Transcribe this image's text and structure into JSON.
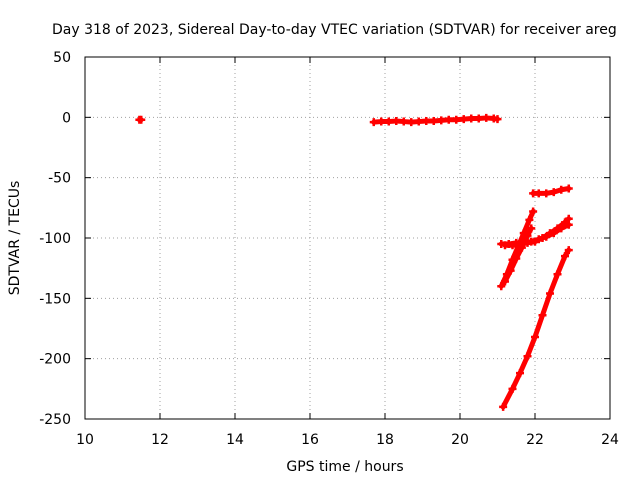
{
  "chart_data": {
    "type": "scatter",
    "title": "Day 318 of 2023, Sidereal Day-to-day VTEC variation (SDTVAR) for receiver areg",
    "xlabel": "GPS time / hours",
    "ylabel": "SDTVAR / TECUs",
    "xlim": [
      10,
      24
    ],
    "ylim": [
      -250,
      50
    ],
    "xticks": [
      10,
      12,
      14,
      16,
      18,
      20,
      22,
      24
    ],
    "yticks": [
      50,
      0,
      -50,
      -100,
      -150,
      -200,
      -250
    ],
    "grid": true,
    "marker_color": "#ff0000",
    "series": [
      {
        "points": [
          [
            11.45,
            -2
          ],
          [
            11.5,
            -2
          ]
        ]
      },
      {
        "points": [
          [
            17.7,
            -4
          ],
          [
            17.9,
            -3.5
          ],
          [
            18.1,
            -3.5
          ],
          [
            18.3,
            -3
          ],
          [
            18.5,
            -3.5
          ],
          [
            18.7,
            -4
          ],
          [
            18.9,
            -3.5
          ],
          [
            19.1,
            -3
          ],
          [
            19.3,
            -3
          ],
          [
            19.5,
            -2.5
          ],
          [
            19.7,
            -2
          ],
          [
            19.9,
            -2
          ],
          [
            20.1,
            -1.5
          ],
          [
            20.3,
            -1
          ],
          [
            20.5,
            -1
          ],
          [
            20.7,
            -0.5
          ],
          [
            20.9,
            -1
          ],
          [
            21.0,
            -1.5
          ]
        ]
      },
      {
        "points": [
          [
            21.95,
            -63
          ],
          [
            22.1,
            -63
          ],
          [
            22.3,
            -63
          ],
          [
            22.5,
            -62
          ],
          [
            22.7,
            -60
          ],
          [
            22.9,
            -59
          ]
        ]
      },
      {
        "points": [
          [
            21.1,
            -105
          ],
          [
            21.3,
            -105
          ],
          [
            21.5,
            -104
          ],
          [
            21.7,
            -104
          ],
          [
            21.9,
            -103
          ],
          [
            22.1,
            -101
          ],
          [
            22.3,
            -99
          ],
          [
            22.5,
            -96
          ],
          [
            22.7,
            -92
          ],
          [
            22.9,
            -89
          ]
        ]
      },
      {
        "points": [
          [
            21.2,
            -106
          ],
          [
            21.4,
            -106
          ],
          [
            21.6,
            -105
          ],
          [
            21.8,
            -104
          ],
          [
            22.0,
            -103
          ],
          [
            22.2,
            -100
          ],
          [
            22.4,
            -96
          ],
          [
            22.6,
            -92
          ],
          [
            22.8,
            -87
          ],
          [
            22.9,
            -84
          ]
        ]
      },
      {
        "points": [
          [
            21.1,
            -140
          ],
          [
            21.25,
            -130
          ],
          [
            21.4,
            -118
          ],
          [
            21.55,
            -107
          ],
          [
            21.7,
            -96
          ],
          [
            21.85,
            -85
          ],
          [
            21.95,
            -78
          ]
        ]
      },
      {
        "points": [
          [
            21.2,
            -136
          ],
          [
            21.35,
            -127
          ],
          [
            21.5,
            -117
          ],
          [
            21.65,
            -108
          ],
          [
            21.8,
            -98
          ],
          [
            21.9,
            -92
          ]
        ]
      },
      {
        "points": [
          [
            21.15,
            -240
          ],
          [
            21.4,
            -225
          ],
          [
            21.6,
            -212
          ],
          [
            21.8,
            -198
          ],
          [
            22.0,
            -182
          ],
          [
            22.2,
            -164
          ],
          [
            22.4,
            -146
          ],
          [
            22.6,
            -130
          ],
          [
            22.8,
            -115
          ],
          [
            22.9,
            -110
          ]
        ]
      }
    ]
  }
}
